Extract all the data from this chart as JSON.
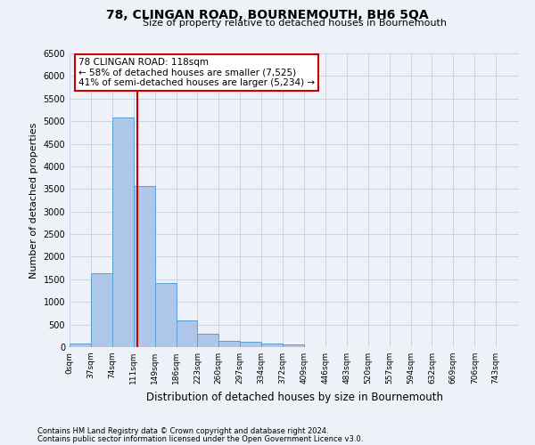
{
  "title": "78, CLINGAN ROAD, BOURNEMOUTH, BH6 5QA",
  "subtitle": "Size of property relative to detached houses in Bournemouth",
  "xlabel": "Distribution of detached houses by size in Bournemouth",
  "ylabel": "Number of detached properties",
  "footnote1": "Contains HM Land Registry data © Crown copyright and database right 2024.",
  "footnote2": "Contains public sector information licensed under the Open Government Licence v3.0.",
  "bar_labels": [
    "0sqm",
    "37sqm",
    "74sqm",
    "111sqm",
    "149sqm",
    "186sqm",
    "223sqm",
    "260sqm",
    "297sqm",
    "334sqm",
    "372sqm",
    "409sqm",
    "446sqm",
    "483sqm",
    "520sqm",
    "557sqm",
    "594sqm",
    "632sqm",
    "669sqm",
    "706sqm",
    "743sqm"
  ],
  "bar_values": [
    70,
    1630,
    5080,
    3570,
    1410,
    590,
    295,
    145,
    110,
    75,
    50,
    0,
    0,
    0,
    0,
    0,
    0,
    0,
    0,
    0,
    0
  ],
  "bar_color": "#aec6e8",
  "bar_edgecolor": "#5a9fd4",
  "grid_color": "#c8d4e8",
  "annotation_line1": "78 CLINGAN ROAD: 118sqm",
  "annotation_line2": "← 58% of detached houses are smaller (7,525)",
  "annotation_line3": "41% of semi-detached houses are larger (5,234) →",
  "annotation_box_color": "#cc0000",
  "annotation_box_fill": "white",
  "property_line_x": 118,
  "bin_width": 37,
  "ylim": [
    0,
    6500
  ],
  "xlim_min": 0,
  "xlim_max": 780,
  "background_color": "#eef2f8",
  "yticks": [
    0,
    500,
    1000,
    1500,
    2000,
    2500,
    3000,
    3500,
    4000,
    4500,
    5000,
    5500,
    6000,
    6500
  ]
}
